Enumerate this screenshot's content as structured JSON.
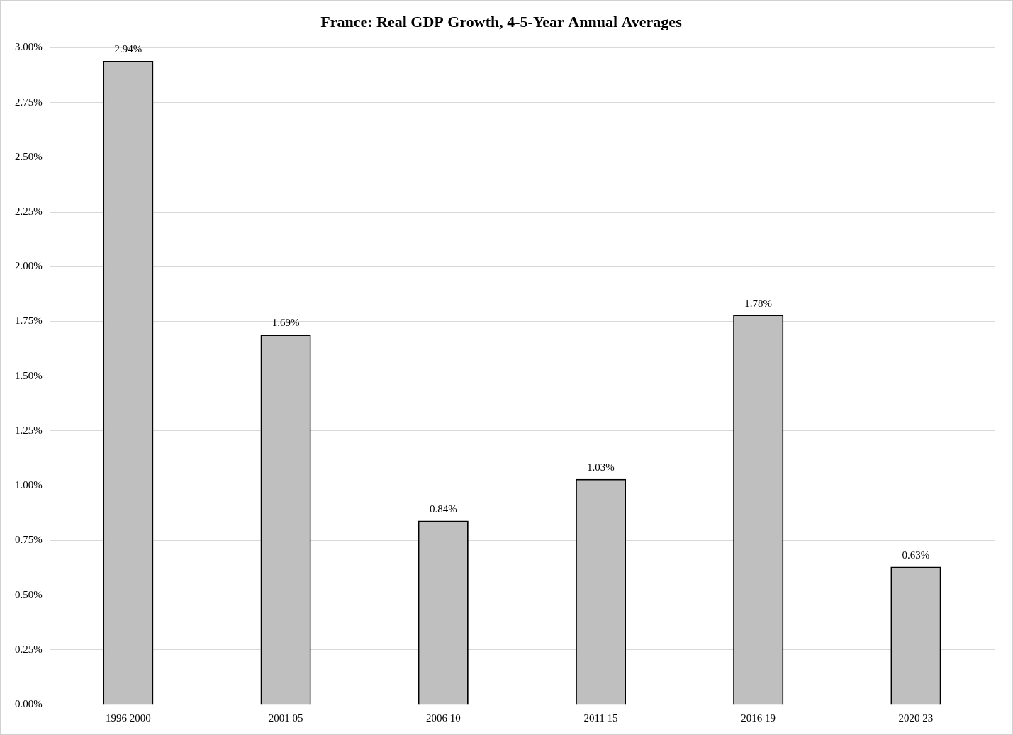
{
  "chart_data": {
    "type": "bar",
    "title": "France: Real GDP Growth, 4-5-Year Annual Averages",
    "categories": [
      "1996 2000",
      "2001 05",
      "2006 10",
      "2011 15",
      "2016 19",
      "2020 23"
    ],
    "values": [
      2.94,
      1.69,
      0.84,
      1.03,
      1.78,
      0.63
    ],
    "value_labels": [
      "2.94%",
      "1.69%",
      "0.84%",
      "1.03%",
      "1.78%",
      "0.63%"
    ],
    "color": "#bfbfbf",
    "ylim": [
      0,
      3
    ],
    "yticks": [
      {
        "value": 0,
        "label": "0.00%"
      },
      {
        "value": 0.25,
        "label": "0.25%"
      },
      {
        "value": 0.5,
        "label": "0.50%"
      },
      {
        "value": 0.75,
        "label": "0.75%"
      },
      {
        "value": 1,
        "label": "1.00%"
      },
      {
        "value": 1.25,
        "label": "1.25%"
      },
      {
        "value": 1.5,
        "label": "1.50%"
      },
      {
        "value": 1.75,
        "label": "1.75%"
      },
      {
        "value": 2,
        "label": "2.00%"
      },
      {
        "value": 2.25,
        "label": "2.25%"
      },
      {
        "value": 2.5,
        "label": "2.50%"
      },
      {
        "value": 2.75,
        "label": "2.75%"
      },
      {
        "value": 3,
        "label": "3.00%"
      }
    ],
    "grid": true,
    "data_labels": true
  }
}
